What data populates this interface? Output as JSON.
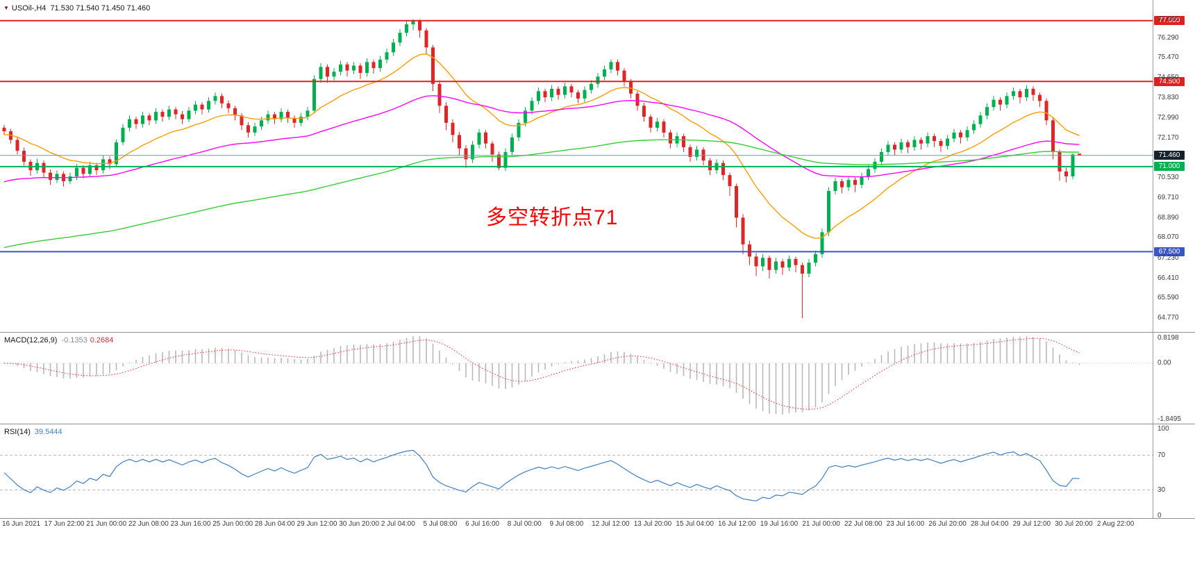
{
  "header": {
    "marker": "▼",
    "symbol_period": "USOil-,H4",
    "ohlc": "71.530 71.540 71.450 71.460"
  },
  "annotation": {
    "text": "多空转折点71",
    "color": "#ff0000"
  },
  "indicators": {
    "macd": {
      "name": "MACD(12,26,9)",
      "main_value": "-0.1353",
      "signal_value": "0.2684"
    },
    "rsi": {
      "name": "RSI(14)",
      "value": "39.5444"
    }
  },
  "time_axis": {
    "x_start": 3,
    "x_step": 60.65,
    "labels": [
      "16 Jun 2021",
      "17 Jun 22:00",
      "21 Jun 00:00",
      "22 Jun 08:00",
      "23 Jun 16:00",
      "25 Jun 00:00",
      "28 Jun 04:00",
      "29 Jun 12:00",
      "30 Jun 20:00",
      "2 Jul 04:00",
      "5 Jul 08:00",
      "6 Jul 16:00",
      "8 Jul 00:00",
      "9 Jul 08:00",
      "12 Jul 12:00",
      "13 Jul 20:00",
      "15 Jul 04:00",
      "16 Jul 12:00",
      "19 Jul 16:00",
      "21 Jul 00:00",
      "22 Jul 08:00",
      "23 Jul 16:00",
      "26 Jul 20:00",
      "28 Jul 04:00",
      "29 Jul 12:00",
      "30 Jul 20:00",
      "2 Aug 22:00"
    ]
  },
  "chart_data": [
    {
      "id": "price",
      "type": "candlestick",
      "symbol": "USOil-",
      "timeframe": "H4",
      "x_start": 6,
      "x_step": 9.5,
      "ylim": [
        64.2,
        77.85
      ],
      "colors": {
        "up": "#00b050",
        "down": "#df2626"
      },
      "axis_labels": [
        {
          "text": "77.060",
          "value": 77.06
        },
        {
          "text": "76.290",
          "value": 76.29
        },
        {
          "text": "75.470",
          "value": 75.47
        },
        {
          "text": "74.650",
          "value": 74.65
        },
        {
          "text": "73.830",
          "value": 73.83
        },
        {
          "text": "72.990",
          "value": 72.99
        },
        {
          "text": "72.170",
          "value": 72.17
        },
        {
          "text": "70.530",
          "value": 70.53
        },
        {
          "text": "69.710",
          "value": 69.71
        },
        {
          "text": "68.890",
          "value": 68.89
        },
        {
          "text": "68.070",
          "value": 68.07
        },
        {
          "text": "67.230",
          "value": 67.23
        },
        {
          "text": "66.410",
          "value": 66.41
        },
        {
          "text": "65.590",
          "value": 65.59
        },
        {
          "text": "64.770",
          "value": 64.77
        }
      ],
      "levels": [
        {
          "value": 77.0,
          "label": "77.000",
          "color": "#e02020",
          "width": 2
        },
        {
          "value": 74.5,
          "label": "74.500",
          "color": "#e02020",
          "width": 2
        },
        {
          "value": 71.46,
          "label": "71.460",
          "color": "#7296aa",
          "width": 1,
          "tag_color": "#16232d"
        },
        {
          "value": 71.0,
          "label": "71.000",
          "color": "#00b050",
          "width": 2
        },
        {
          "value": 67.5,
          "label": "67.500",
          "color": "#3a56c4",
          "width": 2
        }
      ],
      "moving_averages": [
        {
          "period": 16,
          "seed": 72.3,
          "color": "#ff9c00",
          "width": 1.4
        },
        {
          "period": 55,
          "seed": 70.3,
          "color": "#ff00ff",
          "width": 1.4
        },
        {
          "period": 140,
          "seed": 67.6,
          "color": "#32cd32",
          "width": 1.4
        }
      ],
      "candles": [
        [
          72.6,
          72.72,
          72.3,
          72.45
        ],
        [
          72.45,
          72.55,
          71.95,
          72.1
        ],
        [
          72.1,
          72.2,
          71.5,
          71.65
        ],
        [
          71.65,
          71.78,
          71.05,
          71.2
        ],
        [
          71.2,
          71.3,
          70.62,
          70.85
        ],
        [
          70.85,
          71.32,
          70.72,
          71.15
        ],
        [
          71.15,
          71.25,
          70.55,
          70.75
        ],
        [
          70.75,
          70.88,
          70.25,
          70.45
        ],
        [
          70.45,
          70.85,
          70.32,
          70.7
        ],
        [
          70.7,
          70.8,
          70.18,
          70.4
        ],
        [
          70.4,
          70.75,
          70.28,
          70.6
        ],
        [
          70.6,
          71.1,
          70.45,
          70.95
        ],
        [
          70.95,
          71.05,
          70.52,
          70.7
        ],
        [
          70.7,
          71.2,
          70.58,
          71.05
        ],
        [
          71.05,
          71.15,
          70.65,
          70.85
        ],
        [
          70.85,
          71.45,
          70.72,
          71.3
        ],
        [
          71.3,
          71.42,
          70.9,
          71.1
        ],
        [
          71.1,
          72.12,
          71.0,
          72.0
        ],
        [
          72.0,
          72.75,
          71.88,
          72.6
        ],
        [
          72.6,
          73.1,
          72.45,
          72.95
        ],
        [
          72.95,
          73.05,
          72.55,
          72.75
        ],
        [
          72.75,
          73.25,
          72.6,
          73.1
        ],
        [
          73.1,
          73.2,
          72.7,
          72.9
        ],
        [
          72.9,
          73.4,
          72.76,
          73.25
        ],
        [
          73.25,
          73.35,
          72.85,
          73.05
        ],
        [
          73.05,
          73.5,
          72.92,
          73.35
        ],
        [
          73.35,
          73.45,
          72.95,
          73.15
        ],
        [
          73.15,
          73.28,
          72.75,
          72.95
        ],
        [
          72.95,
          73.45,
          72.82,
          73.3
        ],
        [
          73.3,
          73.7,
          73.15,
          73.55
        ],
        [
          73.55,
          73.65,
          73.15,
          73.35
        ],
        [
          73.35,
          73.85,
          73.22,
          73.7
        ],
        [
          73.7,
          74.05,
          73.55,
          73.9
        ],
        [
          73.9,
          74.0,
          73.4,
          73.6
        ],
        [
          73.6,
          73.72,
          73.2,
          73.4
        ],
        [
          73.4,
          73.5,
          72.9,
          73.1
        ],
        [
          73.1,
          73.2,
          72.5,
          72.7
        ],
        [
          72.7,
          72.82,
          72.2,
          72.4
        ],
        [
          72.4,
          72.8,
          72.26,
          72.65
        ],
        [
          72.65,
          73.05,
          72.5,
          72.9
        ],
        [
          72.9,
          73.3,
          72.76,
          73.15
        ],
        [
          73.15,
          73.25,
          72.75,
          72.95
        ],
        [
          72.95,
          73.4,
          72.82,
          73.25
        ],
        [
          73.25,
          73.35,
          72.8,
          73.0
        ],
        [
          73.0,
          73.1,
          72.6,
          72.8
        ],
        [
          72.8,
          73.2,
          72.66,
          73.05
        ],
        [
          73.05,
          73.45,
          72.9,
          73.3
        ],
        [
          73.3,
          74.75,
          73.2,
          74.6
        ],
        [
          74.6,
          75.25,
          74.45,
          75.1
        ],
        [
          75.1,
          75.2,
          74.45,
          74.7
        ],
        [
          74.7,
          75.05,
          74.55,
          74.9
        ],
        [
          74.9,
          75.35,
          74.75,
          75.2
        ],
        [
          75.2,
          75.3,
          74.7,
          74.95
        ],
        [
          74.95,
          75.3,
          74.8,
          75.15
        ],
        [
          75.15,
          75.25,
          74.6,
          74.85
        ],
        [
          74.85,
          75.45,
          74.7,
          75.3
        ],
        [
          75.3,
          75.4,
          74.82,
          75.05
        ],
        [
          75.05,
          75.55,
          74.9,
          75.4
        ],
        [
          75.4,
          75.85,
          75.25,
          75.7
        ],
        [
          75.7,
          76.25,
          75.55,
          76.1
        ],
        [
          76.1,
          76.65,
          75.95,
          76.5
        ],
        [
          76.5,
          77.0,
          76.35,
          76.85
        ],
        [
          76.85,
          77.06,
          76.6,
          77.0
        ],
        [
          77.0,
          77.05,
          76.3,
          76.6
        ],
        [
          76.6,
          76.7,
          75.6,
          75.9
        ],
        [
          75.9,
          76.0,
          74.1,
          74.4
        ],
        [
          74.4,
          74.55,
          73.2,
          73.5
        ],
        [
          73.5,
          73.65,
          72.5,
          72.8
        ],
        [
          72.8,
          72.95,
          72.0,
          72.3
        ],
        [
          72.3,
          72.42,
          71.45,
          71.75
        ],
        [
          71.75,
          71.88,
          70.95,
          71.3
        ],
        [
          71.3,
          72.05,
          71.15,
          71.9
        ],
        [
          71.9,
          72.55,
          71.75,
          72.4
        ],
        [
          72.4,
          72.5,
          71.75,
          71.95
        ],
        [
          71.95,
          72.05,
          71.2,
          71.5
        ],
        [
          71.5,
          71.62,
          70.86,
          70.95
        ],
        [
          70.95,
          71.75,
          70.82,
          71.6
        ],
        [
          71.6,
          72.35,
          71.45,
          72.2
        ],
        [
          72.2,
          72.95,
          72.05,
          72.8
        ],
        [
          72.8,
          73.45,
          72.65,
          73.3
        ],
        [
          73.3,
          73.85,
          73.15,
          73.7
        ],
        [
          73.7,
          74.25,
          73.55,
          74.1
        ],
        [
          74.1,
          74.2,
          73.65,
          73.85
        ],
        [
          73.85,
          74.35,
          73.7,
          74.2
        ],
        [
          74.2,
          74.3,
          73.75,
          73.95
        ],
        [
          73.95,
          74.45,
          73.8,
          74.3
        ],
        [
          74.3,
          74.4,
          73.85,
          74.05
        ],
        [
          74.05,
          74.15,
          73.6,
          73.8
        ],
        [
          73.8,
          74.3,
          73.65,
          74.15
        ],
        [
          74.15,
          74.55,
          74.0,
          74.4
        ],
        [
          74.4,
          74.85,
          74.25,
          74.7
        ],
        [
          74.7,
          75.15,
          74.55,
          75.0
        ],
        [
          75.0,
          75.42,
          74.85,
          75.3
        ],
        [
          75.3,
          75.4,
          74.75,
          74.95
        ],
        [
          74.95,
          75.05,
          74.3,
          74.5
        ],
        [
          74.5,
          74.6,
          73.8,
          74.0
        ],
        [
          74.0,
          74.1,
          73.3,
          73.5
        ],
        [
          73.5,
          73.62,
          72.85,
          73.05
        ],
        [
          73.05,
          73.15,
          72.4,
          72.6
        ],
        [
          72.6,
          73.0,
          72.45,
          72.85
        ],
        [
          72.85,
          72.95,
          72.2,
          72.4
        ],
        [
          72.4,
          72.5,
          71.75,
          71.95
        ],
        [
          71.95,
          72.4,
          71.8,
          72.25
        ],
        [
          72.25,
          72.35,
          71.6,
          71.8
        ],
        [
          71.8,
          71.9,
          71.2,
          71.4
        ],
        [
          71.4,
          71.85,
          71.25,
          71.7
        ],
        [
          71.7,
          71.8,
          71.05,
          71.25
        ],
        [
          71.25,
          71.35,
          70.65,
          70.85
        ],
        [
          70.85,
          71.3,
          70.7,
          71.15
        ],
        [
          71.15,
          71.25,
          70.45,
          70.65
        ],
        [
          70.65,
          70.75,
          69.8,
          70.2
        ],
        [
          70.2,
          70.3,
          68.5,
          68.9
        ],
        [
          68.9,
          69.05,
          67.4,
          67.8
        ],
        [
          67.8,
          67.95,
          66.95,
          67.3
        ],
        [
          67.3,
          67.45,
          66.5,
          66.9
        ],
        [
          66.9,
          67.4,
          66.7,
          67.25
        ],
        [
          67.25,
          67.35,
          66.4,
          66.75
        ],
        [
          66.75,
          67.25,
          66.6,
          67.1
        ],
        [
          67.1,
          67.2,
          66.55,
          66.85
        ],
        [
          66.85,
          67.35,
          66.7,
          67.2
        ],
        [
          67.2,
          67.3,
          66.65,
          66.95
        ],
        [
          66.95,
          67.05,
          64.77,
          66.6
        ],
        [
          66.6,
          67.2,
          66.45,
          67.05
        ],
        [
          67.05,
          67.55,
          66.9,
          67.4
        ],
        [
          67.4,
          68.45,
          67.25,
          68.3
        ],
        [
          68.3,
          70.15,
          68.15,
          70.0
        ],
        [
          70.0,
          70.55,
          69.85,
          70.4
        ],
        [
          70.4,
          70.5,
          69.9,
          70.15
        ],
        [
          70.15,
          70.6,
          70.0,
          70.45
        ],
        [
          70.45,
          70.55,
          69.95,
          70.25
        ],
        [
          70.25,
          70.75,
          70.1,
          70.6
        ],
        [
          70.6,
          71.05,
          70.45,
          70.9
        ],
        [
          70.9,
          71.35,
          70.75,
          71.2
        ],
        [
          71.2,
          71.75,
          71.05,
          71.6
        ],
        [
          71.6,
          72.05,
          71.45,
          71.9
        ],
        [
          71.9,
          72.0,
          71.45,
          71.7
        ],
        [
          71.7,
          72.15,
          71.55,
          72.0
        ],
        [
          72.0,
          72.1,
          71.55,
          71.8
        ],
        [
          71.8,
          72.25,
          71.65,
          72.1
        ],
        [
          72.1,
          72.2,
          71.7,
          71.95
        ],
        [
          71.95,
          72.4,
          71.8,
          72.25
        ],
        [
          72.25,
          72.35,
          71.8,
          72.05
        ],
        [
          72.05,
          72.15,
          71.6,
          71.85
        ],
        [
          71.85,
          72.3,
          71.7,
          72.15
        ],
        [
          72.15,
          72.55,
          72.0,
          72.4
        ],
        [
          72.4,
          72.5,
          71.95,
          72.2
        ],
        [
          72.2,
          72.65,
          72.05,
          72.5
        ],
        [
          72.5,
          72.9,
          72.35,
          72.75
        ],
        [
          72.75,
          73.25,
          72.6,
          73.1
        ],
        [
          73.1,
          73.6,
          72.95,
          73.45
        ],
        [
          73.45,
          73.9,
          73.3,
          73.75
        ],
        [
          73.75,
          73.85,
          73.3,
          73.55
        ],
        [
          73.55,
          74.05,
          73.4,
          73.9
        ],
        [
          73.9,
          74.25,
          73.75,
          74.1
        ],
        [
          74.1,
          74.2,
          73.6,
          73.85
        ],
        [
          73.85,
          74.35,
          73.7,
          74.2
        ],
        [
          74.2,
          74.3,
          73.7,
          73.95
        ],
        [
          73.95,
          74.05,
          73.45,
          73.7
        ],
        [
          73.7,
          73.8,
          72.7,
          72.9
        ],
        [
          72.9,
          73.0,
          71.3,
          71.6
        ],
        [
          71.6,
          71.7,
          70.42,
          70.8
        ],
        [
          70.8,
          70.95,
          70.35,
          70.6
        ],
        [
          70.6,
          71.55,
          70.48,
          71.5
        ],
        [
          71.53,
          71.54,
          71.45,
          71.46
        ]
      ]
    },
    {
      "id": "macd",
      "type": "histogram+line",
      "fast": 12,
      "slow": 26,
      "signal": 9,
      "ylim": [
        -1.9635,
        0.9817
      ],
      "histogram_color": "#b8b8b8",
      "signal_color": "#ff2222",
      "current": {
        "main": -0.1353,
        "signal": 0.2684
      },
      "axis_labels": [
        {
          "text": "0.8198",
          "value": 0.8198
        },
        {
          "text": "0.00",
          "value": 0
        },
        {
          "text": "-1.8495",
          "value": -1.8495
        }
      ]
    },
    {
      "id": "rsi",
      "type": "line",
      "period": 14,
      "ylim": [
        -2.4,
        104.8
      ],
      "line_color": "#3f7fc1",
      "levels": [
        70,
        30
      ],
      "current": 39.5444,
      "axis_labels": [
        {
          "text": "100",
          "value": 100
        },
        {
          "text": "70",
          "value": 70
        },
        {
          "text": "30",
          "value": 30
        },
        {
          "text": "0",
          "value": 0
        }
      ]
    }
  ]
}
